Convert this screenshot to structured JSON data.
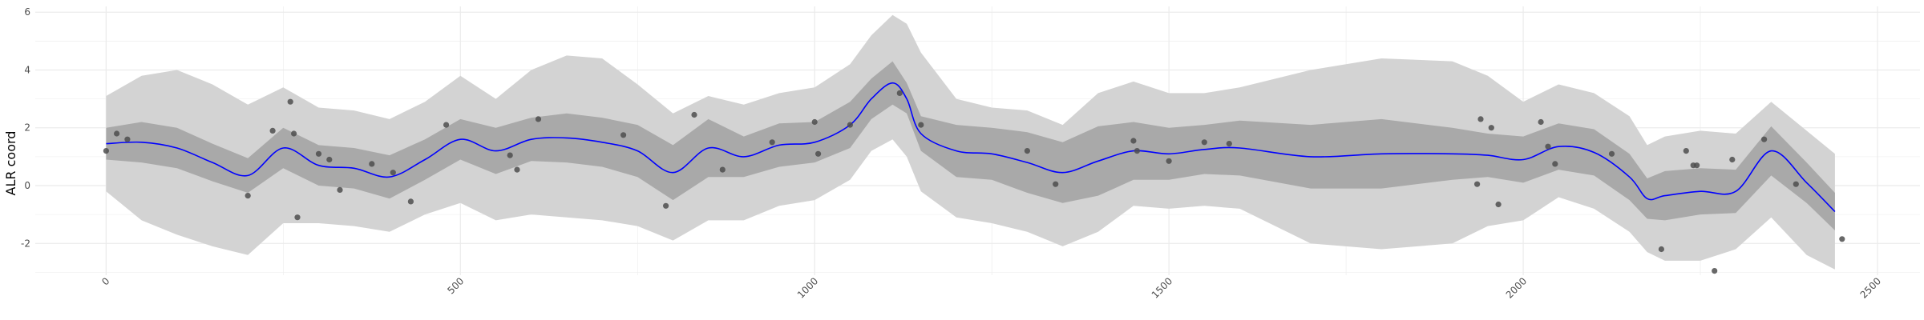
{
  "chart_data": {
    "type": "line",
    "title": "",
    "xlabel": "",
    "ylabel": "ALR coord",
    "xlim": [
      -100,
      2560
    ],
    "ylim": [
      -3.1,
      6.2
    ],
    "x_ticks": [
      0,
      500,
      1000,
      1500,
      2000,
      2500
    ],
    "y_ticks": [
      -2,
      0,
      2,
      4,
      6
    ],
    "grid": true,
    "legend": "none",
    "colors": {
      "mean_line": "#0000ff",
      "inner_band": "#a9a9a9",
      "outer_band": "#d3d3d3",
      "points": "#4d4d4d",
      "grid": "#ebebeb"
    },
    "series": [
      {
        "type": "line",
        "x": [
          0,
          50,
          100,
          150,
          200,
          250,
          300,
          350,
          400,
          450,
          500,
          550,
          600,
          650,
          700,
          750,
          800,
          850,
          900,
          950,
          1000,
          1050,
          1080,
          1110,
          1130,
          1150,
          1200,
          1250,
          1300,
          1350,
          1400,
          1450,
          1500,
          1550,
          1600,
          1700,
          1800,
          1900,
          1950,
          2000,
          2050,
          2100,
          2150,
          2175,
          2200,
          2250,
          2300,
          2350,
          2400,
          2440
        ],
        "y": [
          1.45,
          1.5,
          1.3,
          0.8,
          0.35,
          1.3,
          0.7,
          0.6,
          0.3,
          0.9,
          1.6,
          1.2,
          1.6,
          1.65,
          1.5,
          1.2,
          0.45,
          1.3,
          1.0,
          1.4,
          1.5,
          2.1,
          3.0,
          3.55,
          3.0,
          1.8,
          1.2,
          1.1,
          0.8,
          0.45,
          0.85,
          1.2,
          1.1,
          1.25,
          1.3,
          1.0,
          1.1,
          1.1,
          1.05,
          0.9,
          1.35,
          1.15,
          0.3,
          -0.45,
          -0.35,
          -0.2,
          -0.2,
          1.2,
          0.1,
          -0.9
        ]
      },
      {
        "type": "band",
        "x": [
          0,
          50,
          100,
          150,
          200,
          250,
          300,
          350,
          400,
          450,
          500,
          550,
          600,
          650,
          700,
          750,
          800,
          850,
          900,
          950,
          1000,
          1050,
          1080,
          1110,
          1130,
          1150,
          1200,
          1250,
          1300,
          1350,
          1400,
          1450,
          1500,
          1550,
          1600,
          1700,
          1800,
          1900,
          1950,
          2000,
          2050,
          2100,
          2150,
          2175,
          2200,
          2250,
          2300,
          2350,
          2400,
          2440
        ],
        "lower": [
          0.9,
          0.8,
          0.6,
          0.15,
          -0.25,
          0.6,
          0.0,
          -0.1,
          -0.45,
          0.2,
          0.9,
          0.4,
          0.85,
          0.8,
          0.65,
          0.3,
          -0.5,
          0.3,
          0.3,
          0.65,
          0.8,
          1.3,
          2.3,
          2.8,
          2.5,
          1.2,
          0.3,
          0.2,
          -0.25,
          -0.6,
          -0.35,
          0.2,
          0.2,
          0.4,
          0.35,
          -0.1,
          -0.1,
          0.2,
          0.3,
          0.1,
          0.55,
          0.35,
          -0.5,
          -1.15,
          -1.2,
          -1.0,
          -0.95,
          0.35,
          -0.6,
          -1.55
        ],
        "upper": [
          2.0,
          2.2,
          2.0,
          1.45,
          0.95,
          2.0,
          1.4,
          1.3,
          1.05,
          1.6,
          2.3,
          2.0,
          2.35,
          2.5,
          2.35,
          2.1,
          1.4,
          2.3,
          1.7,
          2.15,
          2.2,
          2.9,
          3.7,
          4.3,
          3.55,
          2.4,
          2.1,
          2.0,
          1.85,
          1.5,
          2.05,
          2.2,
          2.0,
          2.1,
          2.25,
          2.1,
          2.3,
          2.0,
          1.8,
          1.7,
          2.15,
          1.95,
          1.1,
          0.25,
          0.5,
          0.6,
          0.55,
          2.05,
          0.8,
          -0.25
        ]
      },
      {
        "type": "band",
        "x": [
          0,
          50,
          100,
          150,
          200,
          250,
          300,
          350,
          400,
          450,
          500,
          550,
          600,
          650,
          700,
          750,
          800,
          850,
          900,
          950,
          1000,
          1050,
          1080,
          1110,
          1130,
          1150,
          1200,
          1250,
          1300,
          1350,
          1400,
          1450,
          1500,
          1550,
          1600,
          1700,
          1800,
          1900,
          1950,
          2000,
          2050,
          2100,
          2150,
          2175,
          2200,
          2250,
          2300,
          2350,
          2400,
          2440
        ],
        "lower": [
          -0.2,
          -1.2,
          -1.7,
          -2.1,
          -2.4,
          -1.3,
          -1.3,
          -1.4,
          -1.6,
          -1.0,
          -0.6,
          -1.2,
          -1.0,
          -1.1,
          -1.2,
          -1.4,
          -1.9,
          -1.2,
          -1.2,
          -0.7,
          -0.5,
          0.2,
          1.2,
          1.6,
          1.0,
          -0.2,
          -1.1,
          -1.3,
          -1.6,
          -2.1,
          -1.6,
          -0.7,
          -0.8,
          -0.7,
          -0.8,
          -2.0,
          -2.2,
          -2.0,
          -1.4,
          -1.2,
          -0.4,
          -0.8,
          -1.6,
          -2.3,
          -2.6,
          -2.6,
          -2.2,
          -1.1,
          -2.4,
          -2.9
        ],
        "upper": [
          3.1,
          3.8,
          4.0,
          3.5,
          2.8,
          3.4,
          2.7,
          2.6,
          2.3,
          2.9,
          3.8,
          3.0,
          4.0,
          4.5,
          4.4,
          3.5,
          2.5,
          3.1,
          2.8,
          3.2,
          3.4,
          4.2,
          5.2,
          5.9,
          5.6,
          4.6,
          3.0,
          2.7,
          2.6,
          2.1,
          3.2,
          3.6,
          3.2,
          3.2,
          3.4,
          4.0,
          4.4,
          4.3,
          3.8,
          2.9,
          3.5,
          3.2,
          2.4,
          1.4,
          1.7,
          1.9,
          1.8,
          2.9,
          1.9,
          1.1
        ]
      },
      {
        "type": "scatter",
        "x": [
          0,
          15,
          30,
          200,
          235,
          260,
          265,
          270,
          300,
          315,
          330,
          375,
          405,
          430,
          480,
          570,
          580,
          610,
          730,
          790,
          830,
          870,
          940,
          1000,
          1005,
          1050,
          1120,
          1150,
          1300,
          1340,
          1450,
          1455,
          1500,
          1550,
          1585,
          1935,
          1940,
          1955,
          1965,
          2025,
          2035,
          2045,
          2125,
          2195,
          2230,
          2240,
          2245,
          2270,
          2295,
          2340,
          2385,
          2450
        ],
        "y": [
          1.2,
          1.8,
          1.6,
          -0.35,
          1.9,
          2.9,
          1.8,
          -1.1,
          1.1,
          0.9,
          -0.15,
          0.75,
          0.45,
          -0.55,
          2.1,
          1.05,
          0.55,
          2.3,
          1.75,
          -0.7,
          2.45,
          0.55,
          1.5,
          2.2,
          1.1,
          2.1,
          3.2,
          2.1,
          1.2,
          0.05,
          1.55,
          1.2,
          0.85,
          1.5,
          1.45,
          0.05,
          2.3,
          2.0,
          -0.65,
          2.2,
          1.35,
          0.75,
          1.1,
          -2.2,
          1.2,
          0.7,
          0.7,
          -2.95,
          0.9,
          1.6,
          0.05,
          -1.85
        ]
      }
    ]
  }
}
